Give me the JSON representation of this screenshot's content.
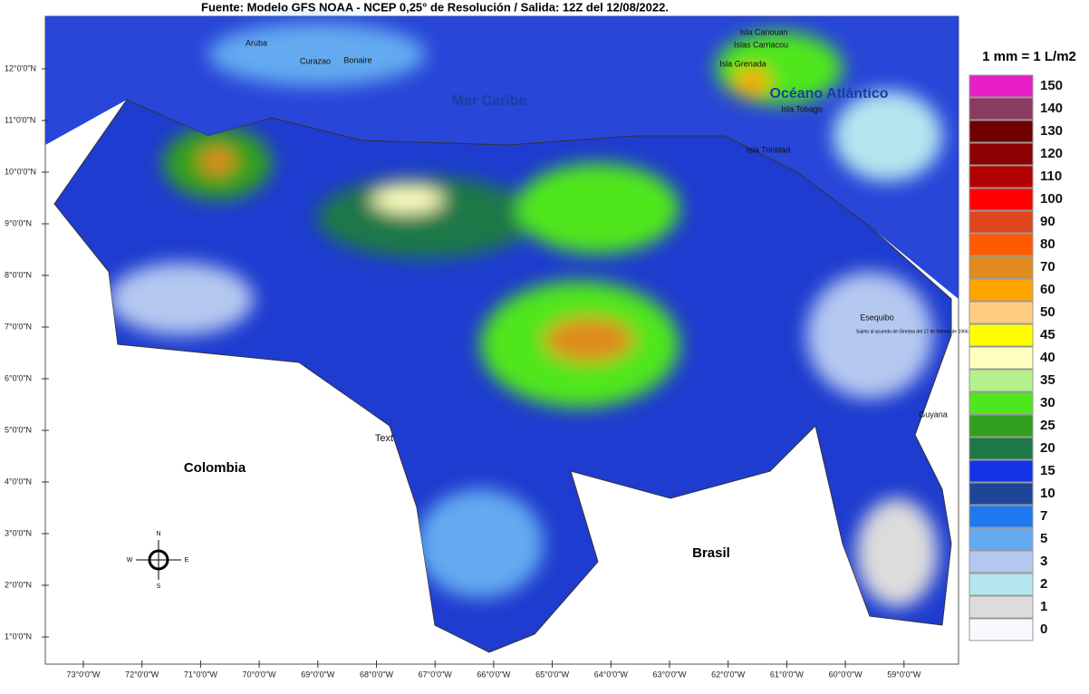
{
  "header": {
    "title": "Fuente: Modelo GFS NOAA - NCEP 0,25° de Resolución / Salida: 12Z del 12/08/2022."
  },
  "legend": {
    "title": "1 mm = 1 L/m2",
    "items": [
      {
        "label": 150,
        "color": "#e81ec8"
      },
      {
        "label": 140,
        "color": "#8b3a62"
      },
      {
        "label": 130,
        "color": "#700000"
      },
      {
        "label": 120,
        "color": "#8b0000"
      },
      {
        "label": 110,
        "color": "#b30000"
      },
      {
        "label": 100,
        "color": "#ff0000"
      },
      {
        "label": 90,
        "color": "#e0461e"
      },
      {
        "label": 80,
        "color": "#ff5a00"
      },
      {
        "label": 70,
        "color": "#e08a1e"
      },
      {
        "label": 60,
        "color": "#ffa500"
      },
      {
        "label": 50,
        "color": "#ffcc80"
      },
      {
        "label": 45,
        "color": "#ffff00"
      },
      {
        "label": 40,
        "color": "#ffffc0"
      },
      {
        "label": 35,
        "color": "#b4f08c"
      },
      {
        "label": 30,
        "color": "#50e61e"
      },
      {
        "label": 25,
        "color": "#32a01e"
      },
      {
        "label": 20,
        "color": "#1e7846"
      },
      {
        "label": 15,
        "color": "#1432e6"
      },
      {
        "label": 10,
        "color": "#1e4696"
      },
      {
        "label": 7,
        "color": "#1e78f0"
      },
      {
        "label": 5,
        "color": "#64aaf0"
      },
      {
        "label": 3,
        "color": "#b4c8f0"
      },
      {
        "label": 2,
        "color": "#b4e6f0"
      },
      {
        "label": 1,
        "color": "#dcdcdc"
      },
      {
        "label": 0,
        "color": "#f8f8ff"
      }
    ]
  },
  "axes": {
    "lat_labels": [
      "12°0'0\"N",
      "11°0'0\"N",
      "10°0'0\"N",
      "9°0'0\"N",
      "8°0'0\"N",
      "7°0'0\"N",
      "6°0'0\"N",
      "5°0'0\"N",
      "4°0'0\"N",
      "3°0'0\"N",
      "2°0'0\"N",
      "1°0'0\"N"
    ],
    "lon_labels": [
      "73°0'0\"W",
      "72°0'0\"W",
      "71°0'0\"W",
      "70°0'0\"W",
      "69°0'0\"W",
      "68°0'0\"W",
      "67°0'0\"W",
      "66°0'0\"W",
      "65°0'0\"W",
      "64°0'0\"W",
      "63°0'0\"W",
      "62°0'0\"W",
      "61°0'0\"W",
      "60°0'0\"W",
      "59°0'0\"W"
    ]
  },
  "places": {
    "aruba": "Aruba",
    "curazao": "Curazao",
    "bonaire": "Bonaire",
    "canouan": "Isla Canouan",
    "carriacou": "Islas Carriacou",
    "grenada": "Isla Grenada",
    "oceano": "Océano Atlántico",
    "tobago": "Isla Tobago",
    "trinidad": "Isla Trinidad",
    "mar_caribe": "Mar Caribe",
    "esequibo": "Esequibo",
    "ginebra": "Sujeto al acuerdo de Ginebra del 17 de febrero de 1966",
    "guyana": "Guyana",
    "colombia": "Colombia",
    "brasil": "Brasil",
    "text": "Text"
  },
  "compass": {
    "n": "N",
    "s": "S",
    "e": "E",
    "w": "W"
  }
}
